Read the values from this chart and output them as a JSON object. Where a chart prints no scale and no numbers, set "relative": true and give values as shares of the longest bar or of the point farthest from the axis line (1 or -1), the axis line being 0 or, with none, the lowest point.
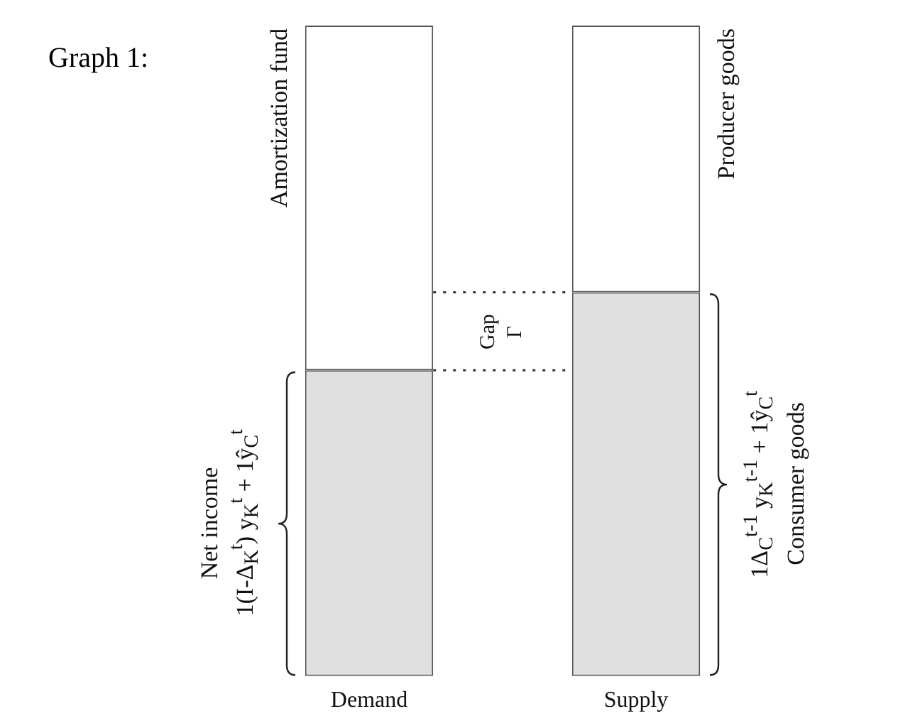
{
  "chart_data": {
    "type": "bar",
    "title": "Graph 1:",
    "stacked": true,
    "relative": true,
    "legend": false,
    "grid": false,
    "categories": [
      "Demand",
      "Supply"
    ],
    "series": [
      {
        "name": "Net income\n1(I-Δ$_{K}$$^{t}$) y$_{K}$$^{t}$ + 1ŷ$_{C}$$^{t}$",
        "color": "#e0e0e0",
        "values": [
          0.47,
          null
        ]
      },
      {
        "name": "1Δ$_{C}$$^{t-1}$ y$_{K}$$^{t-1}$ + 1ŷ$_{C}$$^{t}$\nConsumer goods",
        "color": "#e0e0e0",
        "values": [
          null,
          0.59
        ]
      },
      {
        "name": "Amortization fund",
        "color": "#ffffff",
        "values": [
          0.53,
          null
        ]
      },
      {
        "name": "Producer goods",
        "color": "#ffffff",
        "values": [
          null,
          0.41
        ]
      }
    ],
    "ref_lines": [
      {
        "axis": "y",
        "value": 0.47,
        "line_style": "dotted",
        "color": "#333333"
      },
      {
        "axis": "y",
        "value": 0.59,
        "line_style": "dotted",
        "color": "#333333"
      }
    ],
    "annotations": [
      "Gap\nΓ"
    ]
  }
}
